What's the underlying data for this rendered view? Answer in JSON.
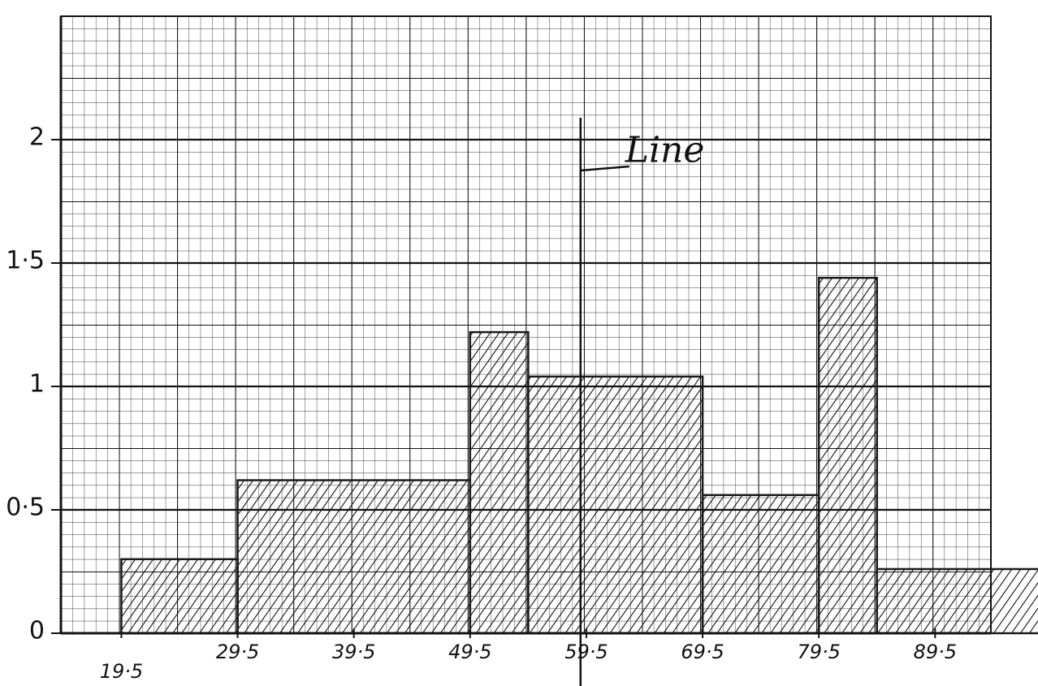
{
  "chart_data": {
    "type": "histogram",
    "bins": [
      19.5,
      29.5,
      49.5,
      54.5,
      69.5,
      79.5,
      84.5,
      98.5
    ],
    "values": [
      0.3,
      0.62,
      1.22,
      1.04,
      0.56,
      1.44,
      0.26
    ],
    "color": "#1a1a1a",
    "xlim": [
      14.3,
      94.3
    ],
    "xticks": [
      {
        "value": 19.5,
        "label": "19·5"
      },
      {
        "value": 29.5,
        "label": "29·5"
      },
      {
        "value": 39.5,
        "label": "39·5"
      },
      {
        "value": 49.5,
        "label": "49·5"
      },
      {
        "value": 59.5,
        "label": "59·5"
      },
      {
        "value": 69.5,
        "label": "69·5"
      },
      {
        "value": 79.5,
        "label": "79·5"
      },
      {
        "value": 89.5,
        "label": "89·5"
      }
    ],
    "ylim": [
      0,
      2.5
    ],
    "yticks": [
      0,
      {
        "value": 0.5,
        "label": "0·5"
      },
      1,
      {
        "value": 1.5,
        "label": "1·5"
      },
      2
    ],
    "grid": true,
    "annotations": [
      {
        "text": "Line",
        "x": 59
      }
    ]
  }
}
